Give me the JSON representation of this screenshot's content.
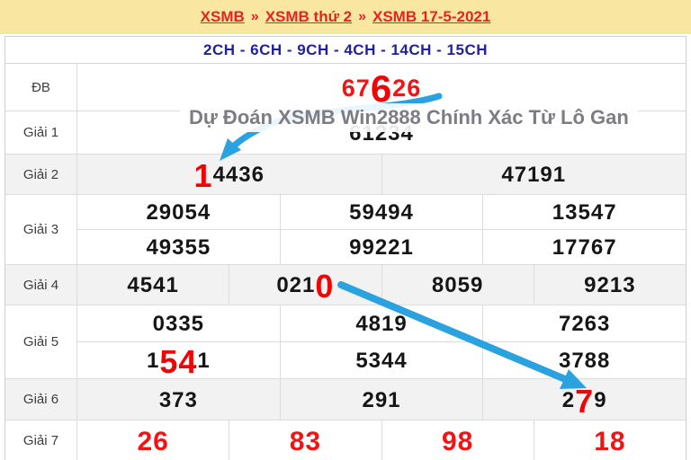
{
  "banner": {
    "separator": "»",
    "links": [
      "XSMB",
      "XSMB thứ 2",
      "XSMB 17-5-2021"
    ],
    "link_color": "#e52323",
    "background": "#f9e7a1"
  },
  "subheader": {
    "text": "2CH - 6CH - 9CH - 4CH - 14CH - 15CH",
    "color": "#21219b"
  },
  "watermark": {
    "text": "Dự Đoán XSMB Win2888 Chính Xác Từ Lô Gan",
    "color": "#7c7c84"
  },
  "annotations": [
    {
      "id": "arrow-1",
      "shape": "curved-arrow",
      "color": "#2aa2e0",
      "from": "special-prize-digit-6",
      "to": "prize2-digit-1"
    },
    {
      "id": "arrow-2",
      "shape": "straight-arrow",
      "color": "#2aa2e0",
      "from": "prize4-digit-0",
      "to": "prize6-digit-7"
    }
  ],
  "colors": {
    "number_black": "#161616",
    "number_red": "#f21414",
    "highlight_red": "#ee0505",
    "stripe": "#f2f2f2",
    "border": "#dcdcdc",
    "label": "#3d3d3d"
  },
  "results": {
    "rows": [
      {
        "id": "db",
        "label": "ĐB",
        "striped": false,
        "lines": [
          [
            [
              {
                "t": "67",
                "c": "r"
              },
              {
                "t": "6",
                "c": "R"
              },
              {
                "t": "26",
                "c": "r"
              }
            ]
          ]
        ]
      },
      {
        "id": "g1",
        "label": "Giải 1",
        "striped": false,
        "obscured_by_watermark": true,
        "lines": [
          [
            [
              {
                "t": "61234",
                "c": "k"
              }
            ]
          ]
        ]
      },
      {
        "id": "g2",
        "label": "Giải 2",
        "striped": true,
        "lines": [
          [
            [
              {
                "t": "1",
                "c": "R"
              },
              {
                "t": "4436",
                "c": "k"
              }
            ],
            [
              {
                "t": "47191",
                "c": "k"
              }
            ]
          ]
        ]
      },
      {
        "id": "g3",
        "label": "Giải 3",
        "striped": false,
        "lines": [
          [
            [
              {
                "t": "29054",
                "c": "k"
              }
            ],
            [
              {
                "t": "59494",
                "c": "k"
              }
            ],
            [
              {
                "t": "13547",
                "c": "k"
              }
            ]
          ],
          [
            [
              {
                "t": "49355",
                "c": "k"
              }
            ],
            [
              {
                "t": "99221",
                "c": "k"
              }
            ],
            [
              {
                "t": "17767",
                "c": "k"
              }
            ]
          ]
        ]
      },
      {
        "id": "g4",
        "label": "Giải 4",
        "striped": true,
        "lines": [
          [
            [
              {
                "t": "4541",
                "c": "k"
              }
            ],
            [
              {
                "t": "021",
                "c": "k"
              },
              {
                "t": "0",
                "c": "R"
              }
            ],
            [
              {
                "t": "8059",
                "c": "k"
              }
            ],
            [
              {
                "t": "9213",
                "c": "k"
              }
            ]
          ]
        ]
      },
      {
        "id": "g5",
        "label": "Giải 5",
        "striped": false,
        "lines": [
          [
            [
              {
                "t": "0335",
                "c": "k"
              }
            ],
            [
              {
                "t": "4819",
                "c": "k"
              }
            ],
            [
              {
                "t": "7263",
                "c": "k"
              }
            ]
          ],
          [
            [
              {
                "t": "1",
                "c": "k"
              },
              {
                "t": "54",
                "c": "R"
              },
              {
                "t": "1",
                "c": "k"
              }
            ],
            [
              {
                "t": "5344",
                "c": "k"
              }
            ],
            [
              {
                "t": "3788",
                "c": "k"
              }
            ]
          ]
        ]
      },
      {
        "id": "g6",
        "label": "Giải 6",
        "striped": true,
        "lines": [
          [
            [
              {
                "t": "373",
                "c": "k"
              }
            ],
            [
              {
                "t": "291",
                "c": "k"
              }
            ],
            [
              {
                "t": "2",
                "c": "k"
              },
              {
                "t": "7",
                "c": "R"
              },
              {
                "t": "9",
                "c": "k"
              }
            ]
          ]
        ]
      },
      {
        "id": "g7",
        "label": "Giải 7",
        "striped": false,
        "all_red": true,
        "lines": [
          [
            [
              {
                "t": "26",
                "c": "r"
              }
            ],
            [
              {
                "t": "83",
                "c": "r"
              }
            ],
            [
              {
                "t": "98",
                "c": "r"
              }
            ],
            [
              {
                "t": "18",
                "c": "r"
              }
            ]
          ]
        ]
      }
    ]
  }
}
